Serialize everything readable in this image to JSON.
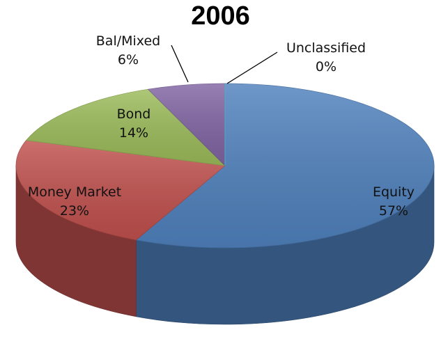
{
  "chart_data": {
    "type": "pie",
    "title": "2006",
    "three_d": true,
    "slices": [
      {
        "label": "Equity",
        "value": 57,
        "value_label": "57%",
        "color": "#4F81BD"
      },
      {
        "label": "Money Market",
        "value": 23,
        "value_label": "23%",
        "color": "#C0504D"
      },
      {
        "label": "Bond",
        "value": 14,
        "value_label": "14%",
        "color": "#9BBB59"
      },
      {
        "label": "Bal/Mixed",
        "value": 6,
        "value_label": "6%",
        "color": "#8064A2"
      },
      {
        "label": "Unclassified",
        "value": 0,
        "value_label": "0%",
        "color": "#4BACC6"
      }
    ]
  }
}
